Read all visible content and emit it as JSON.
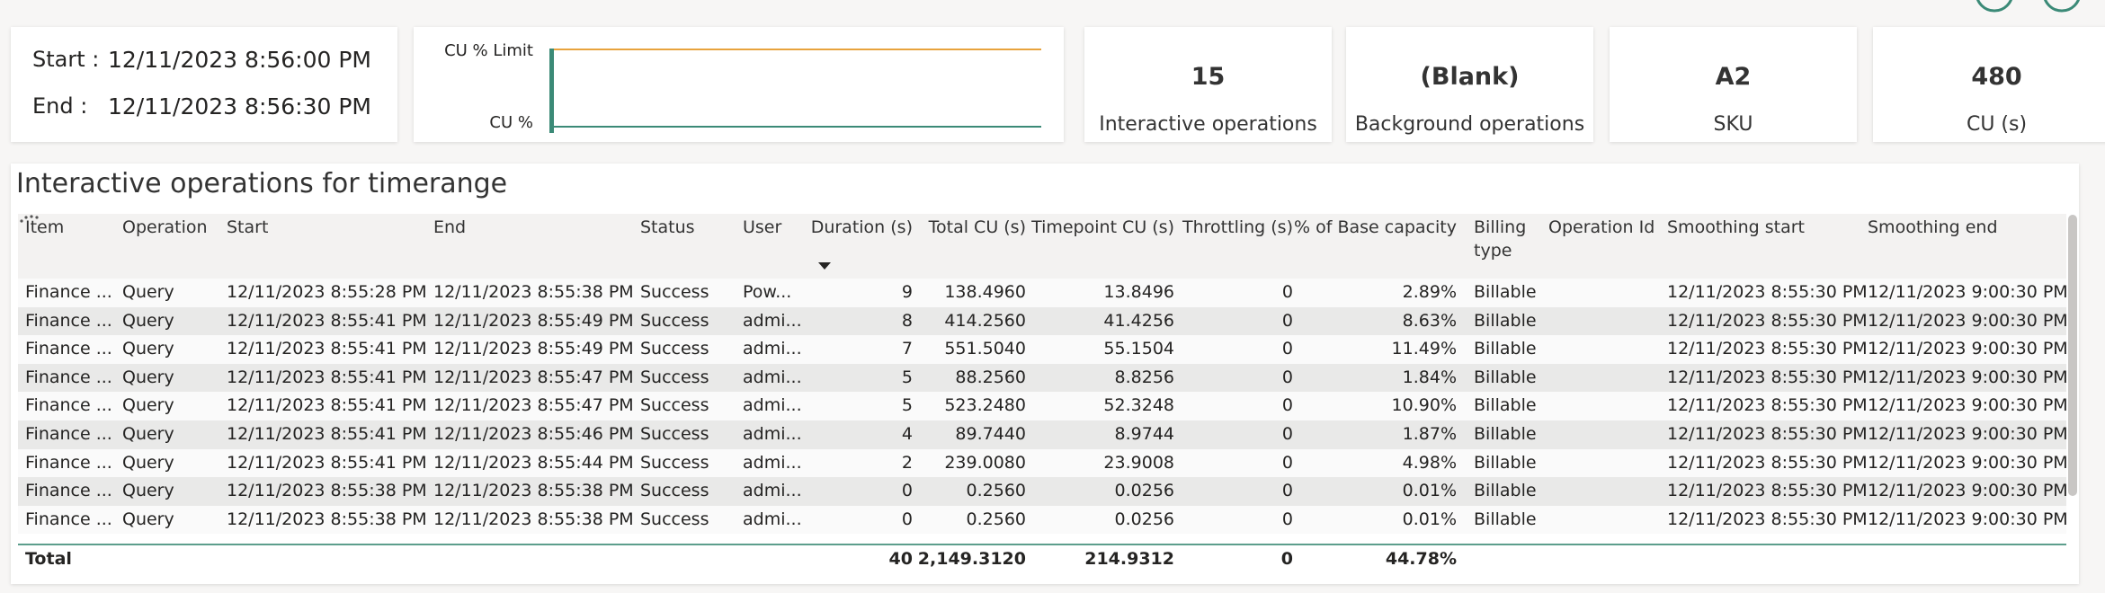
{
  "time_card": {
    "start_label": "Start :",
    "start_value": "12/11/2023 8:56:00 PM",
    "end_label": "End :",
    "end_value": "12/11/2023 8:56:30 PM"
  },
  "mini_chart": {
    "top_label": "CU % Limit",
    "bottom_label": "CU %"
  },
  "kpis": [
    {
      "value": "15",
      "label": "Interactive operations"
    },
    {
      "value": "(Blank)",
      "label": "Background operations"
    },
    {
      "value": "A2",
      "label": "SKU"
    },
    {
      "value": "480",
      "label": "CU (s)"
    }
  ],
  "table": {
    "title": "Interactive operations for timerange",
    "columns": [
      "Item",
      "Operation",
      "Start",
      "End",
      "Status",
      "User",
      "Duration (s)",
      "Total CU (s)",
      "Timepoint CU (s)",
      "Throttling (s)",
      "% of Base capacity",
      "Billing type",
      "Operation Id",
      "Smoothing start",
      "Smoothing end"
    ],
    "rows": [
      {
        "item": "Finance ...",
        "operation": "Query",
        "start": "12/11/2023 8:55:28 PM",
        "end": "12/11/2023 8:55:38 PM",
        "status": "Success",
        "user": "Pow...",
        "duration": "9",
        "total_cu": "138.4960",
        "timepoint_cu": "13.8496",
        "throttling": "0",
        "pct_base": "2.89%",
        "billing": "Billable",
        "smoothing_start": "12/11/2023 8:55:30 PM",
        "smoothing_end": "12/11/2023 9:00:30 PM"
      },
      {
        "item": "Finance ...",
        "operation": "Query",
        "start": "12/11/2023 8:55:41 PM",
        "end": "12/11/2023 8:55:49 PM",
        "status": "Success",
        "user": "admi...",
        "duration": "8",
        "total_cu": "414.2560",
        "timepoint_cu": "41.4256",
        "throttling": "0",
        "pct_base": "8.63%",
        "billing": "Billable",
        "smoothing_start": "12/11/2023 8:55:30 PM",
        "smoothing_end": "12/11/2023 9:00:30 PM"
      },
      {
        "item": "Finance ...",
        "operation": "Query",
        "start": "12/11/2023 8:55:41 PM",
        "end": "12/11/2023 8:55:49 PM",
        "status": "Success",
        "user": "admi...",
        "duration": "7",
        "total_cu": "551.5040",
        "timepoint_cu": "55.1504",
        "throttling": "0",
        "pct_base": "11.49%",
        "billing": "Billable",
        "smoothing_start": "12/11/2023 8:55:30 PM",
        "smoothing_end": "12/11/2023 9:00:30 PM"
      },
      {
        "item": "Finance ...",
        "operation": "Query",
        "start": "12/11/2023 8:55:41 PM",
        "end": "12/11/2023 8:55:47 PM",
        "status": "Success",
        "user": "admi...",
        "duration": "5",
        "total_cu": "88.2560",
        "timepoint_cu": "8.8256",
        "throttling": "0",
        "pct_base": "1.84%",
        "billing": "Billable",
        "smoothing_start": "12/11/2023 8:55:30 PM",
        "smoothing_end": "12/11/2023 9:00:30 PM"
      },
      {
        "item": "Finance ...",
        "operation": "Query",
        "start": "12/11/2023 8:55:41 PM",
        "end": "12/11/2023 8:55:47 PM",
        "status": "Success",
        "user": "admi...",
        "duration": "5",
        "total_cu": "523.2480",
        "timepoint_cu": "52.3248",
        "throttling": "0",
        "pct_base": "10.90%",
        "billing": "Billable",
        "smoothing_start": "12/11/2023 8:55:30 PM",
        "smoothing_end": "12/11/2023 9:00:30 PM"
      },
      {
        "item": "Finance ...",
        "operation": "Query",
        "start": "12/11/2023 8:55:41 PM",
        "end": "12/11/2023 8:55:46 PM",
        "status": "Success",
        "user": "admi...",
        "duration": "4",
        "total_cu": "89.7440",
        "timepoint_cu": "8.9744",
        "throttling": "0",
        "pct_base": "1.87%",
        "billing": "Billable",
        "smoothing_start": "12/11/2023 8:55:30 PM",
        "smoothing_end": "12/11/2023 9:00:30 PM"
      },
      {
        "item": "Finance ...",
        "operation": "Query",
        "start": "12/11/2023 8:55:41 PM",
        "end": "12/11/2023 8:55:44 PM",
        "status": "Success",
        "user": "admi...",
        "duration": "2",
        "total_cu": "239.0080",
        "timepoint_cu": "23.9008",
        "throttling": "0",
        "pct_base": "4.98%",
        "billing": "Billable",
        "smoothing_start": "12/11/2023 8:55:30 PM",
        "smoothing_end": "12/11/2023 9:00:30 PM"
      },
      {
        "item": "Finance ...",
        "operation": "Query",
        "start": "12/11/2023 8:55:38 PM",
        "end": "12/11/2023 8:55:38 PM",
        "status": "Success",
        "user": "admi...",
        "duration": "0",
        "total_cu": "0.2560",
        "timepoint_cu": "0.0256",
        "throttling": "0",
        "pct_base": "0.01%",
        "billing": "Billable",
        "smoothing_start": "12/11/2023 8:55:30 PM",
        "smoothing_end": "12/11/2023 9:00:30 PM"
      },
      {
        "item": "Finance ...",
        "operation": "Query",
        "start": "12/11/2023 8:55:38 PM",
        "end": "12/11/2023 8:55:38 PM",
        "status": "Success",
        "user": "admi...",
        "duration": "0",
        "total_cu": "0.2560",
        "timepoint_cu": "0.0256",
        "throttling": "0",
        "pct_base": "0.01%",
        "billing": "Billable",
        "smoothing_start": "12/11/2023 8:55:30 PM",
        "smoothing_end": "12/11/2023 9:00:30 PM"
      }
    ],
    "total": {
      "label": "Total",
      "duration": "40",
      "total_cu": "2,149.3120",
      "timepoint_cu": "214.9312",
      "throttling": "0",
      "pct_base": "44.78%"
    }
  }
}
